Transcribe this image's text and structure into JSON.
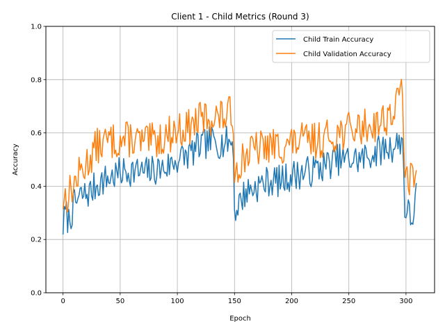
{
  "chart_data": {
    "type": "line",
    "title": "Client 1 - Child Metrics (Round 3)",
    "xlabel": "Epoch",
    "ylabel": "Accuracy",
    "xlim": [
      -15,
      325
    ],
    "ylim": [
      0.0,
      1.0
    ],
    "xticks": [
      0,
      50,
      100,
      150,
      200,
      250,
      300
    ],
    "yticks": [
      0.0,
      0.2,
      0.4,
      0.6,
      0.8,
      1.0
    ],
    "xtick_labels": [
      "0",
      "50",
      "100",
      "150",
      "200",
      "250",
      "300"
    ],
    "ytick_labels": [
      "0.0",
      "0.2",
      "0.4",
      "0.6",
      "0.8",
      "1.0"
    ],
    "grid": true,
    "legend_position": "upper right",
    "x": {
      "start": 0,
      "end": 309,
      "step": 1
    },
    "series": [
      {
        "name": "Child Train Accuracy",
        "color": "#1f77b4",
        "anchors": [
          [
            0,
            0.25
          ],
          [
            2,
            0.3
          ],
          [
            5,
            0.27
          ],
          [
            10,
            0.33
          ],
          [
            15,
            0.36
          ],
          [
            20,
            0.37
          ],
          [
            25,
            0.38
          ],
          [
            30,
            0.41
          ],
          [
            40,
            0.43
          ],
          [
            50,
            0.45
          ],
          [
            60,
            0.46
          ],
          [
            70,
            0.45
          ],
          [
            80,
            0.46
          ],
          [
            90,
            0.47
          ],
          [
            100,
            0.5
          ],
          [
            110,
            0.52
          ],
          [
            120,
            0.55
          ],
          [
            130,
            0.57
          ],
          [
            140,
            0.56
          ],
          [
            145,
            0.57
          ],
          [
            149,
            0.56
          ],
          [
            150,
            0.29
          ],
          [
            153,
            0.33
          ],
          [
            160,
            0.38
          ],
          [
            170,
            0.4
          ],
          [
            180,
            0.42
          ],
          [
            190,
            0.42
          ],
          [
            200,
            0.44
          ],
          [
            210,
            0.45
          ],
          [
            220,
            0.46
          ],
          [
            230,
            0.48
          ],
          [
            240,
            0.5
          ],
          [
            250,
            0.5
          ],
          [
            260,
            0.5
          ],
          [
            270,
            0.52
          ],
          [
            280,
            0.54
          ],
          [
            290,
            0.55
          ],
          [
            297,
            0.58
          ],
          [
            299,
            0.32
          ],
          [
            302,
            0.3
          ],
          [
            305,
            0.27
          ],
          [
            309,
            0.37
          ]
        ],
        "noise": 0.06,
        "seed": 7
      },
      {
        "name": "Child Validation Accuracy",
        "color": "#ff7f0e",
        "anchors": [
          [
            0,
            0.35
          ],
          [
            2,
            0.36
          ],
          [
            5,
            0.37
          ],
          [
            10,
            0.41
          ],
          [
            15,
            0.45
          ],
          [
            20,
            0.48
          ],
          [
            25,
            0.52
          ],
          [
            30,
            0.55
          ],
          [
            40,
            0.57
          ],
          [
            50,
            0.57
          ],
          [
            60,
            0.58
          ],
          [
            70,
            0.56
          ],
          [
            80,
            0.57
          ],
          [
            90,
            0.59
          ],
          [
            100,
            0.61
          ],
          [
            110,
            0.62
          ],
          [
            120,
            0.65
          ],
          [
            130,
            0.66
          ],
          [
            140,
            0.66
          ],
          [
            145,
            0.67
          ],
          [
            149,
            0.66
          ],
          [
            150,
            0.44
          ],
          [
            153,
            0.48
          ],
          [
            160,
            0.52
          ],
          [
            170,
            0.54
          ],
          [
            180,
            0.55
          ],
          [
            190,
            0.55
          ],
          [
            200,
            0.56
          ],
          [
            210,
            0.57
          ],
          [
            220,
            0.57
          ],
          [
            230,
            0.58
          ],
          [
            240,
            0.6
          ],
          [
            250,
            0.61
          ],
          [
            260,
            0.62
          ],
          [
            270,
            0.63
          ],
          [
            280,
            0.65
          ],
          [
            290,
            0.68
          ],
          [
            297,
            0.78
          ],
          [
            299,
            0.45
          ],
          [
            302,
            0.38
          ],
          [
            305,
            0.45
          ],
          [
            309,
            0.43
          ]
        ],
        "noise": 0.07,
        "seed": 13
      }
    ]
  }
}
